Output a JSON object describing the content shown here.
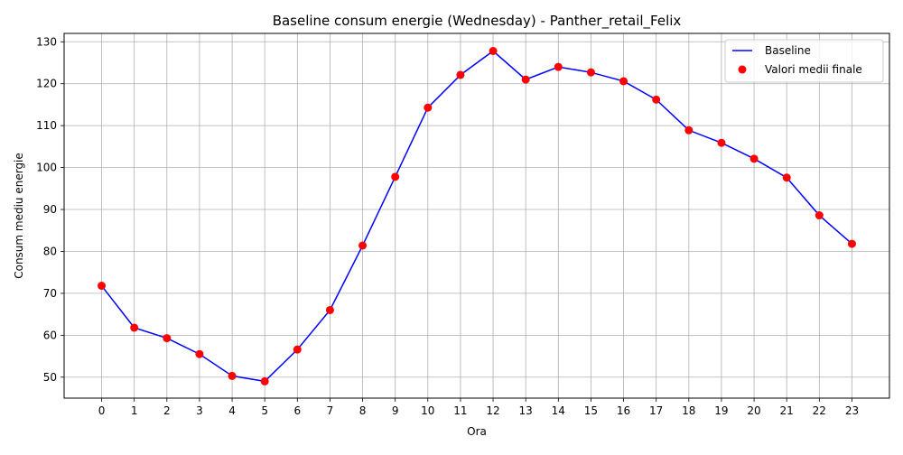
{
  "chart_data": {
    "type": "line",
    "title": "Baseline consum energie (Wednesday) - Panther_retail_Felix",
    "xlabel": "Ora",
    "ylabel": "Consum mediu energie",
    "x": [
      0,
      1,
      2,
      3,
      4,
      5,
      6,
      7,
      8,
      9,
      10,
      11,
      12,
      13,
      14,
      15,
      16,
      17,
      18,
      19,
      20,
      21,
      22,
      23
    ],
    "xlim": [
      -1.15,
      24.15
    ],
    "ylim": [
      45,
      132
    ],
    "yticks": [
      50,
      60,
      70,
      80,
      90,
      100,
      110,
      120,
      130
    ],
    "grid": true,
    "legend_position": "top-right",
    "series": [
      {
        "name": "Baseline",
        "kind": "line",
        "color": "#0000ff",
        "values": [
          71.8,
          61.8,
          59.3,
          55.5,
          50.3,
          49.0,
          56.6,
          66.0,
          81.4,
          97.8,
          114.3,
          122.1,
          127.8,
          121.0,
          124.0,
          122.7,
          120.6,
          116.2,
          108.9,
          105.9,
          102.1,
          97.6,
          88.6,
          81.8
        ]
      },
      {
        "name": "Valori medii finale",
        "kind": "scatter",
        "color": "#ff0000",
        "values": [
          71.8,
          61.8,
          59.3,
          55.5,
          50.3,
          49.0,
          56.6,
          66.0,
          81.4,
          97.8,
          114.3,
          122.1,
          127.8,
          121.0,
          124.0,
          122.7,
          120.6,
          116.2,
          108.9,
          105.9,
          102.1,
          97.6,
          88.6,
          81.8
        ]
      }
    ]
  }
}
